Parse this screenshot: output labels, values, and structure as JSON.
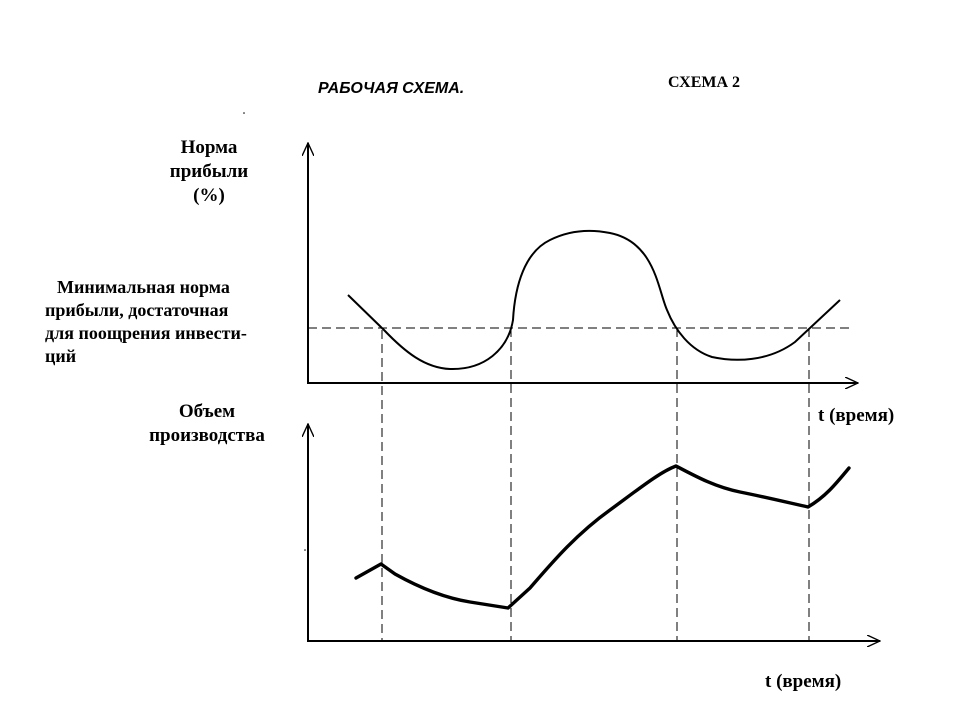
{
  "title": "РАБОЧАЯ СХЕМА.",
  "scheme_label": "СХЕМА 2",
  "top_chart": {
    "y_label_lines": [
      "Норма",
      "прибыли",
      "(%)"
    ],
    "threshold_label_lines": [
      "Минимальная норма",
      "прибыли, достаточная",
      "для поощрения инвести-",
      "ций"
    ],
    "x_label": "t (время)"
  },
  "bottom_chart": {
    "y_label_lines": [
      "Объем",
      "производства"
    ],
    "x_label": "t (время)"
  },
  "colors": {
    "ink": "#000000",
    "background": "#ffffff"
  }
}
